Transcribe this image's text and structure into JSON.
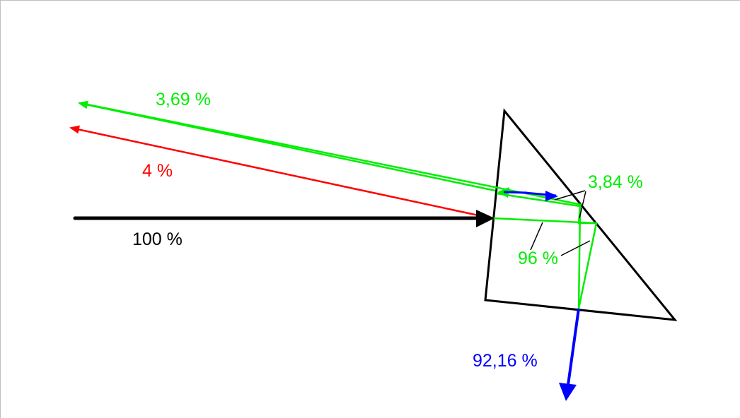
{
  "colors": {
    "incident": "#000000",
    "reflected_surface": "#ff0000",
    "refracted": "#00ee00",
    "transmitted": "#0000ff",
    "prism": "#000000",
    "leader": "#000000"
  },
  "labels": {
    "incident": "100 %",
    "reflected_surface": "4 %",
    "reflected_return": "3,69 %",
    "internal_return": "3,84 %",
    "internal": "96 %",
    "transmitted": "92,16 %"
  }
}
